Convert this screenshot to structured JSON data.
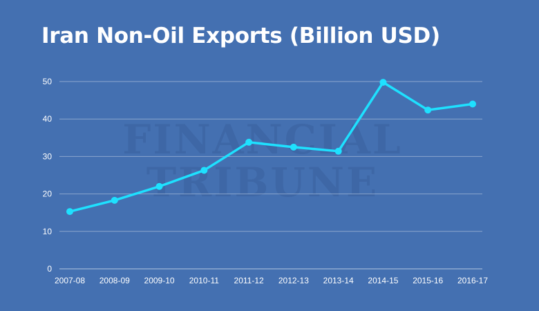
{
  "chart_data": {
    "type": "line",
    "title": "Iran Non-Oil Exports (Billion USD)",
    "xlabel": "",
    "ylabel": "",
    "categories": [
      "2007-08",
      "2008-09",
      "2009-10",
      "2010-11",
      "2011-12",
      "2012-13",
      "2013-14",
      "2014-15",
      "2015-16",
      "2016-17"
    ],
    "series": [
      {
        "values": [
          15.3,
          18.3,
          22.0,
          26.3,
          33.8,
          32.5,
          31.4,
          49.8,
          42.4,
          44.0
        ]
      }
    ],
    "ylim": [
      0,
      50
    ],
    "yticks": [
      "0",
      "10",
      "20",
      "30",
      "40",
      "50"
    ],
    "grid": true,
    "legend": "none",
    "line_color": "#1ee1ff",
    "background_color": "#4470b1"
  },
  "watermark": [
    "FINANCIAL",
    "TRIBUNE"
  ]
}
